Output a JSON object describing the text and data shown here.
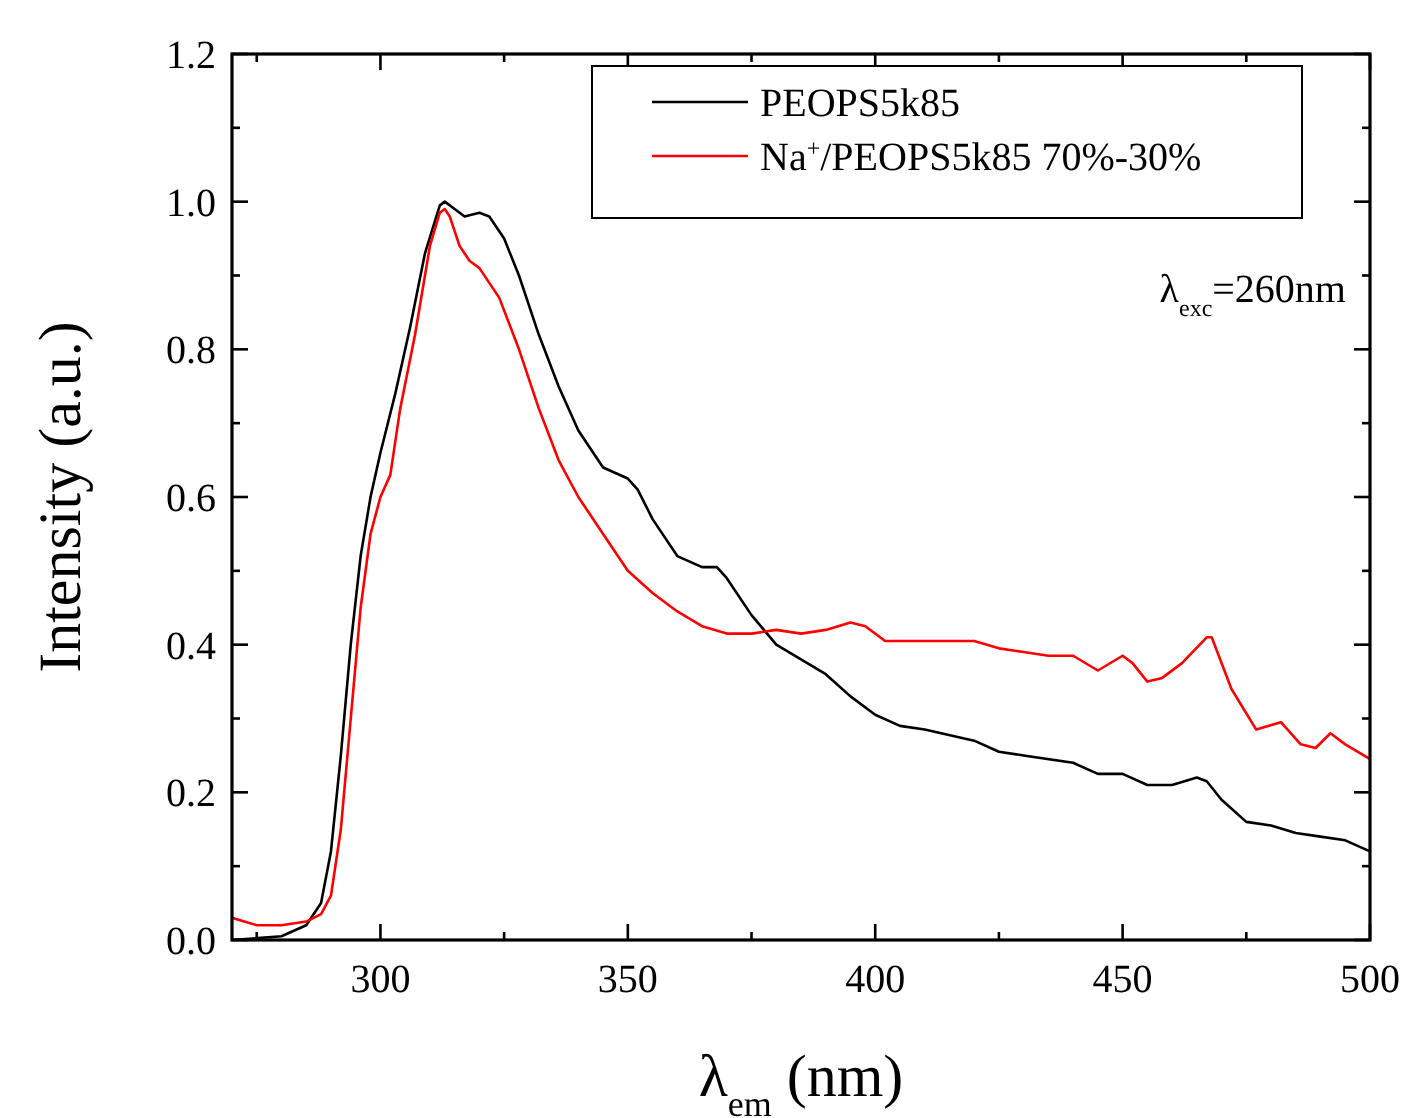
{
  "chart_data": {
    "type": "line",
    "xlabel": "λ$_{em}$ (nm)",
    "ylabel": "Intensity (a.u.)",
    "xlim": [
      270,
      500
    ],
    "ylim": [
      0,
      1.2
    ],
    "xticks": [
      300,
      350,
      400,
      450,
      500
    ],
    "yticks": [
      {
        "value": 0,
        "label": "0.0"
      },
      {
        "value": 0.2,
        "label": "0.2"
      },
      {
        "value": 0.4,
        "label": "0.4"
      },
      {
        "value": 0.6,
        "label": "0.6"
      },
      {
        "value": 0.8,
        "label": "0.8"
      },
      {
        "value": 1,
        "label": "1.0"
      },
      {
        "value": 1.2,
        "label": "1.2"
      }
    ],
    "legend": "top right",
    "grid": false,
    "line_style": "solid",
    "annotations": [
      "λ$_{exc}$=260nm"
    ],
    "series": [
      {
        "name": "PEOPS5k85",
        "color": "#000000",
        "x": [
          270,
          280,
          285,
          288,
          290,
          292,
          294,
          296,
          298,
          300,
          303,
          306,
          309,
          312,
          313,
          315,
          317,
          320,
          322,
          325,
          328,
          332,
          336,
          340,
          345,
          350,
          352,
          355,
          360,
          365,
          368,
          370,
          375,
          380,
          385,
          390,
          395,
          400,
          405,
          410,
          420,
          425,
          430,
          440,
          445,
          450,
          455,
          460,
          465,
          467,
          470,
          475,
          480,
          485,
          490,
          495,
          500
        ],
        "values": [
          0.0,
          0.005,
          0.02,
          0.05,
          0.12,
          0.25,
          0.4,
          0.52,
          0.6,
          0.66,
          0.74,
          0.83,
          0.93,
          0.995,
          1.0,
          0.99,
          0.98,
          0.985,
          0.98,
          0.95,
          0.9,
          0.82,
          0.75,
          0.69,
          0.64,
          0.625,
          0.61,
          0.57,
          0.52,
          0.505,
          0.505,
          0.49,
          0.44,
          0.4,
          0.38,
          0.36,
          0.33,
          0.305,
          0.29,
          0.285,
          0.27,
          0.255,
          0.25,
          0.24,
          0.225,
          0.225,
          0.21,
          0.21,
          0.22,
          0.215,
          0.19,
          0.16,
          0.155,
          0.145,
          0.14,
          0.135,
          0.12
        ]
      },
      {
        "name": "Na$^{+}$/PEOPS5k85 70%-30%",
        "color": "#ff0000",
        "x": [
          270,
          275,
          280,
          285,
          288,
          290,
          292,
          294,
          296,
          298,
          300,
          302,
          304,
          307,
          310,
          312,
          313,
          314,
          316,
          318,
          320,
          324,
          328,
          332,
          336,
          340,
          345,
          350,
          355,
          360,
          365,
          370,
          375,
          380,
          385,
          390,
          395,
          398,
          402,
          410,
          420,
          425,
          430,
          435,
          440,
          445,
          450,
          452,
          455,
          458,
          462,
          467,
          468,
          472,
          477,
          482,
          486,
          489,
          492,
          495,
          500
        ],
        "values": [
          0.03,
          0.02,
          0.02,
          0.025,
          0.035,
          0.06,
          0.15,
          0.3,
          0.45,
          0.55,
          0.6,
          0.63,
          0.72,
          0.82,
          0.94,
          0.985,
          0.99,
          0.98,
          0.94,
          0.92,
          0.91,
          0.87,
          0.8,
          0.72,
          0.65,
          0.6,
          0.55,
          0.5,
          0.47,
          0.445,
          0.425,
          0.415,
          0.415,
          0.42,
          0.415,
          0.42,
          0.43,
          0.425,
          0.405,
          0.405,
          0.405,
          0.395,
          0.39,
          0.385,
          0.385,
          0.365,
          0.385,
          0.375,
          0.35,
          0.355,
          0.375,
          0.41,
          0.41,
          0.34,
          0.285,
          0.295,
          0.265,
          0.26,
          0.28,
          0.265,
          0.245
        ]
      }
    ]
  }
}
